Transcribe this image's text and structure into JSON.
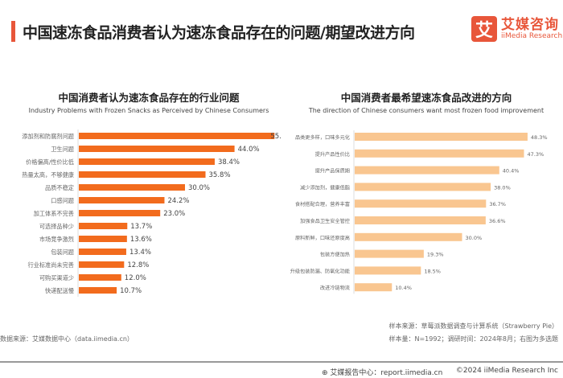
{
  "header": {
    "title": "中国速冻食品消费者认为速冻食品存在的问题/期望改进方向"
  },
  "logo": {
    "mark": "艾",
    "name_cn": "艾媒咨询",
    "name_en": "iiMedia Research"
  },
  "chart_data": [
    {
      "type": "bar",
      "orientation": "horizontal",
      "title": "中国消费者认为速冻食品存在的行业问题",
      "subtitle": "Industry Problems with Frozen Snacks as Perceived by Chinese Consumers",
      "color": "#f26b1d",
      "unit": "%",
      "categories": [
        "添加剂和防腐剂问题",
        "卫生问题",
        "价格偏高/性价比低",
        "热量太高，不够健康",
        "品质不稳定",
        "口感问题",
        "加工体系不完善",
        "可选择品种少",
        "市场竞争激烈",
        "包装问题",
        "行业标准尚未完善",
        "可购买渠道少",
        "快递配送慢"
      ],
      "values": [
        55.3,
        44.0,
        38.4,
        35.8,
        30.0,
        24.2,
        23.0,
        13.7,
        13.6,
        13.4,
        12.8,
        12.0,
        10.7
      ],
      "labels": [
        "55.3%",
        "44.0%",
        "38.4%",
        "35.8%",
        "30.0%",
        "24.2%",
        "23.0%",
        "13.7%",
        "13.6%",
        "13.4%",
        "12.8%",
        "12.0%",
        "10.7%"
      ]
    },
    {
      "type": "bar",
      "orientation": "horizontal",
      "title": "中国消费者最希望速冻食品改进的方向",
      "subtitle": "The direction of Chinese consumers want most frozen food improvement",
      "color": "#f9c690",
      "unit": "%",
      "categories": [
        "品类更多样，口味多元化",
        "提升产品性价比",
        "提升产品保质期",
        "减少添加剂，健康低脂",
        "食材搭配合理，营养丰富",
        "加强食品卫生安全管控",
        "原料新鲜，口味还原度高",
        "包装方便加热",
        "升级包装防漏、防氧化功能",
        "改进冷链物流"
      ],
      "values": [
        48.3,
        47.3,
        40.4,
        38.0,
        36.7,
        36.6,
        30.0,
        19.3,
        18.5,
        10.4
      ],
      "labels": [
        "48.3%",
        "47.3%",
        "40.4%",
        "38.0%",
        "36.7%",
        "36.6%",
        "30.0%",
        "19.3%",
        "18.5%",
        "10.4%"
      ]
    }
  ],
  "footer": {
    "source_left": "数据来源：艾媒数据中心（data.iimedia.cn）",
    "sample_source": "样本来源：草莓派数据调查与计算系统（Strawberry Pie）",
    "sample_info": "样本量：N=1992；调研时间：2024年8月；右图为多选题",
    "report": "艾媒报告中心：report.iimedia.cn",
    "copyright": "©2024  iiMedia Research Inc"
  }
}
